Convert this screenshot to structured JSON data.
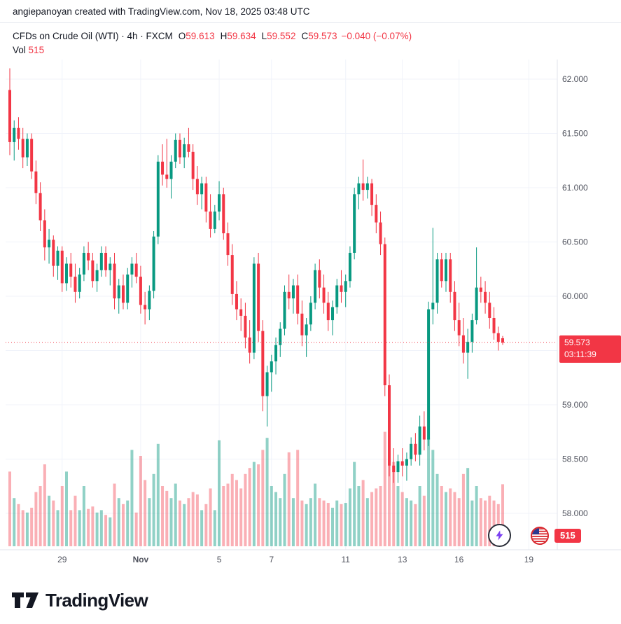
{
  "attribution": "angiepanoyan created with TradingView.com, Nov 18, 2025 03:48 UTC",
  "legend": {
    "title": "CFDs on Crude Oil (WTI) · 4h · FXCM",
    "o_label": "O",
    "o": "59.613",
    "h_label": "H",
    "h": "59.634",
    "l_label": "L",
    "l": "59.552",
    "c_label": "C",
    "c": "59.573",
    "change": "−0.040 (−0.07%)",
    "vol_label": "Vol",
    "vol_value": "515"
  },
  "last_price": {
    "price_label": "59.573",
    "countdown": "03:11:39",
    "value": 59.573
  },
  "badges": {
    "volume_badge": "515"
  },
  "footer": {
    "brand": "TradingView"
  },
  "colors": {
    "up": "#089981",
    "down": "#F23645",
    "vol_up": "rgba(8,153,129,0.45)",
    "vol_down": "rgba(242,54,69,0.4)",
    "grid": "#f0f3fa",
    "border": "#e0e3eb",
    "axis_text": "#50535e",
    "text": "#131722",
    "badge_text": "#ffffff"
  },
  "chart_data": {
    "type": "candlestick",
    "title": "CFDs on Crude Oil (WTI) · 4h · FXCM",
    "symbol": "CFDs on Crude Oil (WTI)",
    "interval": "4h",
    "exchange": "FXCM",
    "ylim": [
      57.9,
      62.2
    ],
    "grid_prices": [
      62.0,
      61.5,
      61.0,
      60.5,
      60.0,
      59.5,
      59.0,
      58.5,
      58.0
    ],
    "price_ticks": [
      {
        "label": "62.000",
        "value": 62.0
      },
      {
        "label": "61.500",
        "value": 61.5
      },
      {
        "label": "61.000",
        "value": 61.0
      },
      {
        "label": "60.500",
        "value": 60.5
      },
      {
        "label": "60.000",
        "value": 60.0
      },
      {
        "label": "59.000",
        "value": 59.0
      },
      {
        "label": "58.500",
        "value": 58.5
      },
      {
        "label": "58.000",
        "value": 58.0
      }
    ],
    "time_ticks": [
      {
        "label": "29",
        "i": 12
      },
      {
        "label": "Nov",
        "i": 30,
        "bold": true
      },
      {
        "label": "5",
        "i": 48
      },
      {
        "label": "7",
        "i": 60
      },
      {
        "label": "11",
        "i": 77
      },
      {
        "label": "13",
        "i": 90
      },
      {
        "label": "16",
        "i": 103
      },
      {
        "label": "19",
        "i": 119
      }
    ],
    "columns": [
      "open",
      "high",
      "low",
      "close",
      "volume"
    ],
    "candles": [
      [
        61.9,
        62.1,
        61.3,
        61.42,
        620
      ],
      [
        61.42,
        61.62,
        61.25,
        61.55,
        400
      ],
      [
        61.55,
        61.65,
        61.35,
        61.45,
        350
      ],
      [
        61.45,
        61.55,
        61.18,
        61.28,
        300
      ],
      [
        61.28,
        61.5,
        61.2,
        61.45,
        280
      ],
      [
        61.45,
        61.5,
        61.08,
        61.15,
        320
      ],
      [
        61.15,
        61.25,
        60.85,
        60.95,
        450
      ],
      [
        60.95,
        61.05,
        60.6,
        60.7,
        500
      ],
      [
        60.7,
        60.8,
        60.33,
        60.45,
        680
      ],
      [
        60.45,
        60.62,
        60.3,
        60.52,
        420
      ],
      [
        60.52,
        60.56,
        60.18,
        60.28,
        380
      ],
      [
        60.28,
        60.46,
        60.15,
        60.42,
        300
      ],
      [
        60.42,
        60.46,
        60.04,
        60.12,
        500
      ],
      [
        60.12,
        60.36,
        60.05,
        60.3,
        620
      ],
      [
        60.3,
        60.4,
        60.08,
        60.18,
        300
      ],
      [
        60.18,
        60.3,
        59.94,
        60.04,
        420
      ],
      [
        60.04,
        60.26,
        59.98,
        60.2,
        300
      ],
      [
        60.2,
        60.46,
        60.14,
        60.4,
        500
      ],
      [
        60.4,
        60.5,
        60.24,
        60.33,
        310
      ],
      [
        60.33,
        60.4,
        60.08,
        60.14,
        330
      ],
      [
        60.14,
        60.3,
        60.04,
        60.24,
        280
      ],
      [
        60.24,
        60.46,
        60.18,
        60.4,
        300
      ],
      [
        60.4,
        60.46,
        60.18,
        60.24,
        260
      ],
      [
        60.24,
        60.36,
        60.1,
        60.3,
        240
      ],
      [
        60.3,
        60.4,
        59.88,
        59.98,
        520
      ],
      [
        59.98,
        60.16,
        59.84,
        60.1,
        400
      ],
      [
        60.1,
        60.2,
        59.88,
        59.94,
        350
      ],
      [
        59.94,
        60.26,
        59.88,
        60.2,
        380
      ],
      [
        60.2,
        60.36,
        60.08,
        60.3,
        800
      ],
      [
        60.3,
        60.4,
        60.12,
        60.18,
        280
      ],
      [
        60.18,
        60.28,
        59.84,
        59.92,
        750
      ],
      [
        59.92,
        60.04,
        59.74,
        59.88,
        550
      ],
      [
        59.88,
        60.1,
        59.78,
        60.05,
        400
      ],
      [
        60.05,
        60.6,
        59.98,
        60.55,
        600
      ],
      [
        60.55,
        61.3,
        60.48,
        61.24,
        850
      ],
      [
        61.24,
        61.4,
        61.02,
        61.12,
        500
      ],
      [
        61.12,
        61.45,
        61.0,
        61.08,
        460
      ],
      [
        61.08,
        61.3,
        60.9,
        61.24,
        400
      ],
      [
        61.24,
        61.5,
        61.18,
        61.44,
        520
      ],
      [
        61.44,
        61.5,
        61.22,
        61.28,
        380
      ],
      [
        61.28,
        61.46,
        61.18,
        61.4,
        350
      ],
      [
        61.4,
        61.55,
        61.28,
        61.33,
        400
      ],
      [
        61.33,
        61.4,
        60.98,
        61.08,
        450
      ],
      [
        61.08,
        61.2,
        60.84,
        60.94,
        430
      ],
      [
        60.94,
        61.1,
        60.8,
        61.04,
        300
      ],
      [
        61.04,
        61.1,
        60.68,
        60.78,
        350
      ],
      [
        60.78,
        60.94,
        60.54,
        60.62,
        480
      ],
      [
        60.62,
        60.84,
        60.58,
        60.78,
        300
      ],
      [
        60.78,
        61.06,
        60.7,
        60.94,
        880
      ],
      [
        60.94,
        61.0,
        60.52,
        60.58,
        500
      ],
      [
        60.58,
        60.68,
        60.28,
        60.38,
        520
      ],
      [
        60.38,
        60.48,
        59.92,
        60.02,
        600
      ],
      [
        60.02,
        60.14,
        59.78,
        59.88,
        550
      ],
      [
        59.88,
        59.98,
        59.68,
        59.82,
        480
      ],
      [
        59.82,
        59.94,
        59.52,
        59.62,
        600
      ],
      [
        59.62,
        59.78,
        59.38,
        59.48,
        650
      ],
      [
        59.48,
        60.36,
        59.42,
        60.3,
        700
      ],
      [
        60.3,
        60.4,
        59.58,
        59.68,
        680
      ],
      [
        59.68,
        59.78,
        58.94,
        59.08,
        800
      ],
      [
        59.08,
        59.36,
        58.8,
        59.3,
        900
      ],
      [
        59.3,
        59.46,
        59.12,
        59.4,
        500
      ],
      [
        59.4,
        59.62,
        59.28,
        59.55,
        450
      ],
      [
        59.55,
        59.76,
        59.44,
        59.7,
        400
      ],
      [
        59.7,
        60.1,
        59.64,
        60.04,
        600
      ],
      [
        60.04,
        60.2,
        59.88,
        59.98,
        780
      ],
      [
        59.98,
        60.16,
        59.84,
        60.1,
        400
      ],
      [
        60.1,
        60.2,
        59.74,
        59.84,
        800
      ],
      [
        59.84,
        59.96,
        59.54,
        59.64,
        380
      ],
      [
        59.64,
        59.8,
        59.44,
        59.74,
        350
      ],
      [
        59.74,
        60.0,
        59.68,
        59.94,
        400
      ],
      [
        59.94,
        60.3,
        59.88,
        60.24,
        520
      ],
      [
        60.24,
        60.34,
        59.98,
        60.08,
        400
      ],
      [
        60.08,
        60.2,
        59.84,
        59.94,
        380
      ],
      [
        59.94,
        60.04,
        59.68,
        59.78,
        360
      ],
      [
        59.78,
        59.96,
        59.64,
        59.9,
        320
      ],
      [
        59.9,
        60.16,
        59.84,
        60.1,
        380
      ],
      [
        60.1,
        60.24,
        59.94,
        60.04,
        350
      ],
      [
        60.04,
        60.2,
        59.9,
        60.14,
        360
      ],
      [
        60.14,
        60.46,
        60.08,
        60.4,
        480
      ],
      [
        60.4,
        61.0,
        60.34,
        60.94,
        700
      ],
      [
        60.94,
        61.1,
        60.8,
        61.04,
        500
      ],
      [
        61.04,
        61.26,
        60.88,
        60.98,
        550
      ],
      [
        60.98,
        61.1,
        60.9,
        61.04,
        400
      ],
      [
        61.04,
        61.08,
        60.74,
        60.84,
        450
      ],
      [
        60.84,
        60.94,
        60.58,
        60.68,
        480
      ],
      [
        60.68,
        60.78,
        60.38,
        60.48,
        500
      ],
      [
        60.48,
        60.54,
        59.08,
        59.18,
        950
      ],
      [
        59.18,
        59.28,
        58.34,
        58.44,
        1000
      ],
      [
        58.44,
        58.6,
        58.28,
        58.38,
        700
      ],
      [
        58.38,
        58.54,
        58.28,
        58.48,
        500
      ],
      [
        58.48,
        58.6,
        58.34,
        58.44,
        450
      ],
      [
        58.44,
        58.56,
        58.3,
        58.5,
        400
      ],
      [
        58.5,
        58.7,
        58.44,
        58.64,
        380
      ],
      [
        58.64,
        58.74,
        58.48,
        58.54,
        350
      ],
      [
        58.54,
        58.9,
        58.44,
        58.8,
        500
      ],
      [
        58.8,
        58.94,
        58.58,
        58.68,
        420
      ],
      [
        58.68,
        59.95,
        58.62,
        59.88,
        900
      ],
      [
        59.88,
        60.63,
        59.74,
        59.94,
        800
      ],
      [
        59.94,
        60.4,
        59.84,
        60.34,
        600
      ],
      [
        60.34,
        60.4,
        60.08,
        60.14,
        500
      ],
      [
        60.14,
        60.4,
        60.04,
        60.34,
        450
      ],
      [
        60.34,
        60.4,
        59.94,
        60.04,
        480
      ],
      [
        60.04,
        60.14,
        59.68,
        59.78,
        450
      ],
      [
        59.78,
        59.94,
        59.54,
        59.64,
        400
      ],
      [
        59.64,
        59.8,
        59.38,
        59.48,
        600
      ],
      [
        59.48,
        59.7,
        59.24,
        59.58,
        650
      ],
      [
        59.58,
        59.84,
        59.48,
        59.78,
        380
      ],
      [
        59.78,
        60.45,
        59.74,
        60.08,
        500
      ],
      [
        60.08,
        60.18,
        59.94,
        60.04,
        400
      ],
      [
        60.04,
        60.14,
        59.84,
        59.94,
        380
      ],
      [
        59.94,
        60.04,
        59.7,
        59.8,
        420
      ],
      [
        59.8,
        59.9,
        59.6,
        59.66,
        380
      ],
      [
        59.66,
        59.72,
        59.5,
        59.58,
        350
      ],
      [
        59.613,
        59.634,
        59.552,
        59.573,
        515
      ]
    ]
  }
}
